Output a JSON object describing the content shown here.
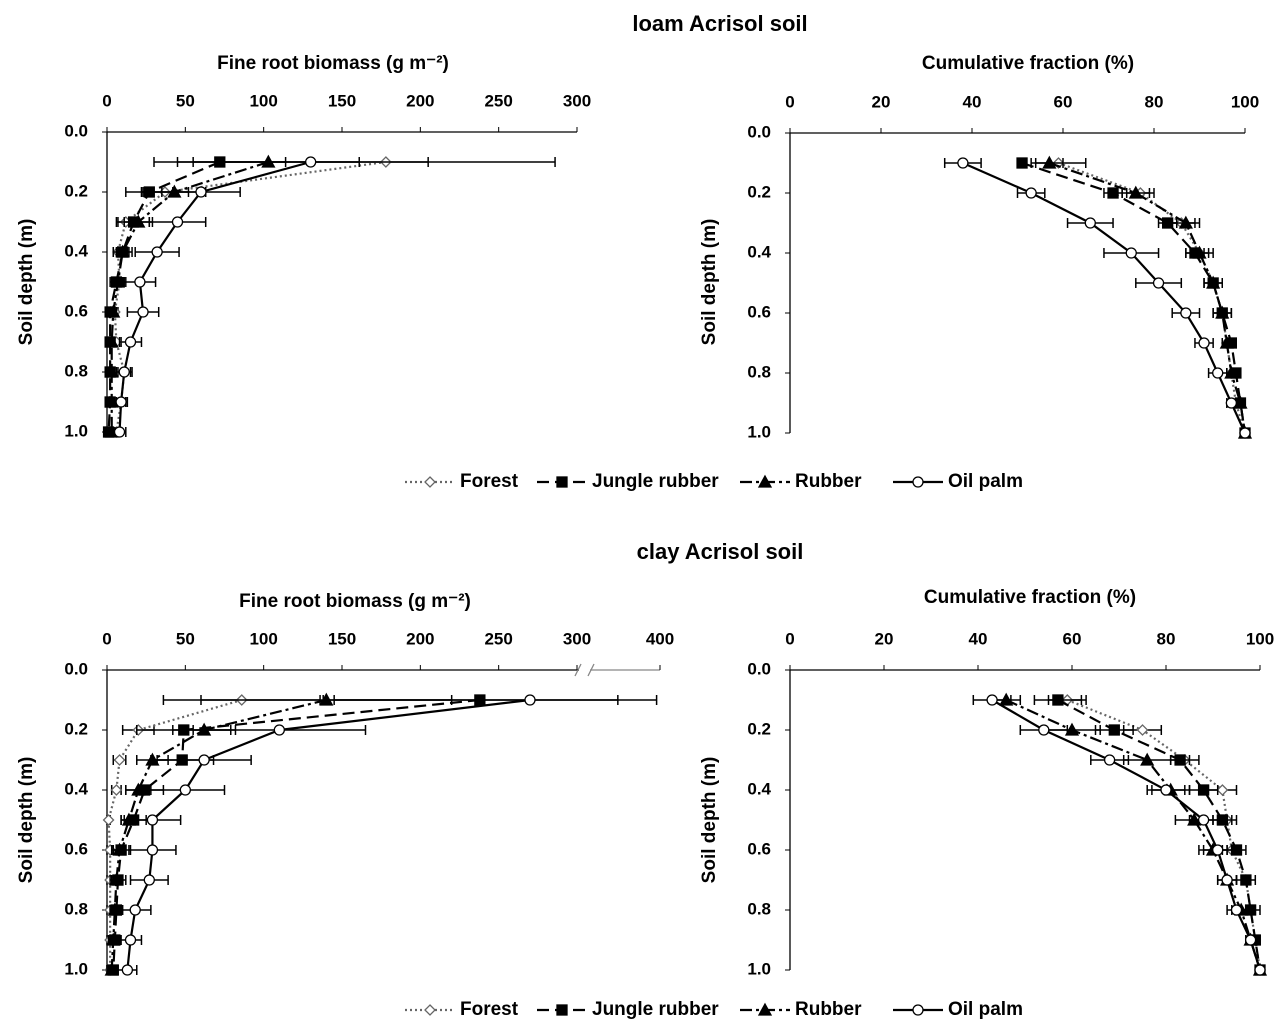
{
  "sections": [
    {
      "title": "loam Acrisol soil"
    },
    {
      "title": "clay Acrisol soil"
    }
  ],
  "chart_data": [
    {
      "type": "line",
      "x_label": "Fine root biomass (g m⁻²)",
      "y_label": "Soil depth (m)",
      "xlim": [
        0,
        300
      ],
      "xticks": [
        0,
        50,
        100,
        150,
        200,
        250,
        300
      ],
      "ylim": [
        0,
        1
      ],
      "y_reversed": true,
      "yticks": [
        {
          "value": 0,
          "label": "0.0"
        },
        {
          "value": 0.2,
          "label": "0.2"
        },
        {
          "value": 0.4,
          "label": "0.4"
        },
        {
          "value": 0.6,
          "label": "0.6"
        },
        {
          "value": 0.8,
          "label": "0.8"
        },
        {
          "value": 1,
          "label": "1.0"
        }
      ],
      "y": [
        0.1,
        0.2,
        0.3,
        0.4,
        0.5,
        0.6,
        0.7,
        0.8,
        0.9,
        1
      ],
      "series": [
        {
          "name": "Forest",
          "color": "#666666",
          "line_style": "dotted",
          "marker": "diamond-open",
          "values": [
            178,
            37,
            12,
            7,
            8,
            5,
            6,
            11,
            9,
            6
          ],
          "errors": [
            108,
            15,
            6,
            3,
            4,
            2,
            3,
            4,
            3,
            2
          ]
        },
        {
          "name": "Jungle rubber",
          "color": "#000000",
          "line_style": "dashed",
          "marker": "square",
          "values": [
            72,
            27,
            17,
            10,
            6,
            2,
            2,
            2,
            2,
            1
          ],
          "errors": [
            42,
            15,
            10,
            6,
            4,
            3,
            2,
            2,
            2,
            1
          ]
        },
        {
          "name": "Rubber",
          "color": "#000000",
          "line_style": "dashdot",
          "marker": "triangle",
          "values": [
            103,
            43,
            20,
            10,
            7,
            4,
            3,
            3,
            3,
            3
          ],
          "errors": [
            58,
            20,
            9,
            4,
            3,
            2,
            2,
            2,
            2,
            2
          ]
        },
        {
          "name": "Oil palm",
          "color": "#000000",
          "line_style": "solid",
          "marker": "circle-open",
          "values": [
            130,
            60,
            45,
            32,
            21,
            23,
            15,
            11,
            9,
            8
          ],
          "errors": [
            75,
            25,
            18,
            14,
            10,
            10,
            7,
            5,
            4,
            4
          ]
        }
      ]
    },
    {
      "type": "line",
      "x_label": "Cumulative fraction (%)",
      "y_label": "Soil depth (m)",
      "xlim": [
        0,
        100
      ],
      "xticks": [
        0,
        20,
        40,
        60,
        80,
        100
      ],
      "ylim": [
        0,
        1
      ],
      "y_reversed": true,
      "yticks": [
        {
          "value": 0,
          "label": "0.0"
        },
        {
          "value": 0.2,
          "label": "0.2"
        },
        {
          "value": 0.4,
          "label": "0.4"
        },
        {
          "value": 0.6,
          "label": "0.6"
        },
        {
          "value": 0.8,
          "label": "0.8"
        },
        {
          "value": 1,
          "label": "1.0"
        }
      ],
      "y": [
        0.1,
        0.2,
        0.3,
        0.4,
        0.5,
        0.6,
        0.7,
        0.8,
        0.9,
        1
      ],
      "series": [
        {
          "name": "Forest",
          "color": "#666666",
          "line_style": "dotted",
          "marker": "diamond-open",
          "values": [
            59,
            77,
            86,
            90,
            93,
            95,
            96,
            97,
            98,
            100
          ],
          "errors": [
            6,
            3,
            3,
            3,
            2,
            2,
            1,
            1,
            1,
            0
          ]
        },
        {
          "name": "Jungle rubber",
          "color": "#000000",
          "line_style": "dashed",
          "marker": "square",
          "values": [
            51,
            71,
            83,
            89,
            93,
            95,
            97,
            98,
            99,
            100
          ],
          "errors": [
            1,
            2,
            2,
            2,
            2,
            2,
            1,
            1,
            1,
            0
          ]
        },
        {
          "name": "Rubber",
          "color": "#000000",
          "line_style": "dashdot",
          "marker": "triangle",
          "values": [
            57,
            76,
            87,
            90,
            93,
            95,
            96,
            97,
            99,
            100
          ],
          "errors": [
            3,
            3,
            3,
            2,
            1,
            1,
            1,
            1,
            1,
            0
          ]
        },
        {
          "name": "Oil palm",
          "color": "#000000",
          "line_style": "solid",
          "marker": "circle-open",
          "values": [
            38,
            53,
            66,
            75,
            81,
            87,
            91,
            94,
            97,
            100
          ],
          "errors": [
            4,
            3,
            5,
            6,
            5,
            3,
            2,
            2,
            1,
            0
          ]
        }
      ]
    },
    {
      "type": "line",
      "x_label": "Fine root biomass (g m⁻²)",
      "y_label": "Soil depth (m)",
      "xlim": [
        0,
        400
      ],
      "xbreak": 300,
      "xticks": [
        0,
        50,
        100,
        150,
        200,
        250,
        300,
        400
      ],
      "ylim": [
        0,
        1
      ],
      "y_reversed": true,
      "yticks": [
        {
          "value": 0,
          "label": "0.0"
        },
        {
          "value": 0.2,
          "label": "0.2"
        },
        {
          "value": 0.4,
          "label": "0.4"
        },
        {
          "value": 0.6,
          "label": "0.6"
        },
        {
          "value": 0.8,
          "label": "0.8"
        },
        {
          "value": 1,
          "label": "1.0"
        }
      ],
      "y": [
        0.1,
        0.2,
        0.3,
        0.4,
        0.5,
        0.6,
        0.7,
        0.8,
        0.9,
        1
      ],
      "series": [
        {
          "name": "Forest",
          "color": "#666666",
          "line_style": "dotted",
          "marker": "diamond-open",
          "values": [
            86,
            20,
            8,
            6,
            1,
            2,
            2,
            2,
            2,
            2
          ],
          "errors": [
            50,
            10,
            4,
            3,
            1,
            2,
            2,
            2,
            2,
            2
          ]
        },
        {
          "name": "Jungle rubber",
          "color": "#000000",
          "line_style": "dashed",
          "marker": "square",
          "values": [
            238,
            49,
            48,
            24,
            17,
            9,
            7,
            6,
            5,
            4
          ],
          "errors": [
            100,
            30,
            20,
            12,
            8,
            6,
            5,
            4,
            4,
            3
          ]
        },
        {
          "name": "Rubber",
          "color": "#000000",
          "line_style": "dashdot",
          "marker": "triangle",
          "values": [
            140,
            62,
            29,
            20,
            14,
            8,
            6,
            5,
            4,
            3
          ],
          "errors": [
            80,
            20,
            10,
            8,
            5,
            4,
            3,
            3,
            3,
            3
          ]
        },
        {
          "name": "Oil palm",
          "color": "#000000",
          "line_style": "solid",
          "marker": "circle-open",
          "values": [
            270,
            110,
            62,
            50,
            29,
            29,
            27,
            18,
            15,
            13
          ],
          "errors": [
            125,
            55,
            30,
            25,
            18,
            15,
            12,
            10,
            7,
            6
          ]
        }
      ]
    },
    {
      "type": "line",
      "x_label": "Cumulative fraction (%)",
      "y_label": "Soil depth (m)",
      "xlim": [
        0,
        100
      ],
      "xticks": [
        0,
        20,
        40,
        60,
        80,
        100
      ],
      "ylim": [
        0,
        1
      ],
      "y_reversed": true,
      "yticks": [
        {
          "value": 0,
          "label": "0.0"
        },
        {
          "value": 0.2,
          "label": "0.2"
        },
        {
          "value": 0.4,
          "label": "0.4"
        },
        {
          "value": 0.6,
          "label": "0.6"
        },
        {
          "value": 0.8,
          "label": "0.8"
        },
        {
          "value": 1,
          "label": "1.0"
        }
      ],
      "y": [
        0.1,
        0.2,
        0.3,
        0.4,
        0.5,
        0.6,
        0.7,
        0.8,
        0.9,
        1
      ],
      "series": [
        {
          "name": "Forest",
          "color": "#666666",
          "line_style": "dotted",
          "marker": "diamond-open",
          "values": [
            59,
            75,
            84,
            92,
            93,
            94,
            97,
            98,
            99,
            100
          ],
          "errors": [
            4,
            4,
            3,
            3,
            2,
            2,
            1,
            1,
            1,
            0
          ]
        },
        {
          "name": "Jungle rubber",
          "color": "#000000",
          "line_style": "dashed",
          "marker": "square",
          "values": [
            57,
            69,
            83,
            88,
            92,
            95,
            97,
            98,
            99,
            100
          ],
          "errors": [
            5,
            4,
            2,
            3,
            2,
            2,
            2,
            2,
            1,
            0
          ]
        },
        {
          "name": "Rubber",
          "color": "#000000",
          "line_style": "dashdot",
          "marker": "triangle",
          "values": [
            46,
            60,
            76,
            81,
            86,
            90,
            93,
            96,
            98,
            100
          ],
          "errors": [
            3,
            6,
            5,
            4,
            4,
            3,
            2,
            2,
            1,
            0
          ]
        },
        {
          "name": "Oil palm",
          "color": "#000000",
          "line_style": "solid",
          "marker": "circle-open",
          "values": [
            43,
            54,
            68,
            80,
            88,
            91,
            93,
            95,
            98,
            100
          ],
          "errors": [
            4,
            5,
            4,
            4,
            3,
            3,
            2,
            2,
            1,
            0
          ]
        }
      ]
    }
  ]
}
